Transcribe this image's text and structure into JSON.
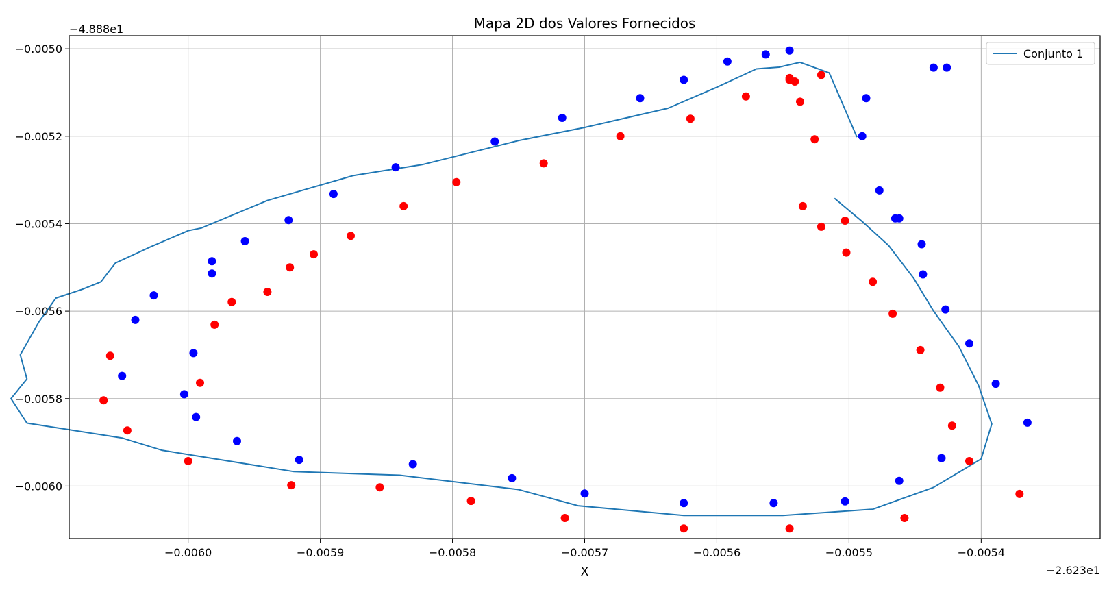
{
  "chart_data": {
    "type": "scatter",
    "title": "Mapa 2D dos Valores Fornecidos",
    "xlabel": "X",
    "ylabel": "",
    "x_offset_label": "−2.623e1",
    "y_offset_label": "−4.888e1",
    "xlim": [
      -0.00609,
      -0.00531
    ],
    "ylim": [
      -0.00612,
      -0.00497
    ],
    "x_ticks": [
      -0.006,
      -0.0059,
      -0.0058,
      -0.0057,
      -0.0056,
      -0.0055,
      -0.0054
    ],
    "x_tick_labels": [
      "−0.0060",
      "−0.0059",
      "−0.0058",
      "−0.0057",
      "−0.0056",
      "−0.0055",
      "−0.0054"
    ],
    "y_ticks": [
      -0.005,
      -0.0052,
      -0.0054,
      -0.0056,
      -0.0058,
      -0.006
    ],
    "y_tick_labels": [
      "−0.0050",
      "−0.0052",
      "−0.0054",
      "−0.0056",
      "−0.0058",
      "−0.0060"
    ],
    "grid": true,
    "legend_position": "top-right",
    "line_color": "#1f77b4",
    "series": [
      {
        "name": "Conjunto 1",
        "kind": "line",
        "color": "#1f77b4",
        "segments": [
          [
            [
              -0.005494,
              -0.005202
            ],
            [
              -0.005515,
              -0.005055
            ],
            [
              -0.005537,
              -0.005031
            ],
            [
              -0.005553,
              -0.005042
            ],
            [
              -0.00557,
              -0.005046
            ],
            [
              -0.0056,
              -0.005088
            ],
            [
              -0.005637,
              -0.005136
            ],
            [
              -0.0057,
              -0.00518
            ],
            [
              -0.00575,
              -0.00521
            ],
            [
              -0.005823,
              -0.005265
            ],
            [
              -0.005875,
              -0.00529
            ],
            [
              -0.00594,
              -0.005347
            ],
            [
              -0.00599,
              -0.00541
            ],
            [
              -0.006,
              -0.005416
            ],
            [
              -0.00603,
              -0.005455
            ],
            [
              -0.006055,
              -0.00549
            ],
            [
              -0.006066,
              -0.005533
            ],
            [
              -0.00608,
              -0.00555
            ],
            [
              -0.0061,
              -0.00557
            ],
            [
              -0.006113,
              -0.005625
            ],
            [
              -0.006127,
              -0.0057
            ],
            [
              -0.006122,
              -0.005755
            ],
            [
              -0.006134,
              -0.0058
            ],
            [
              -0.006122,
              -0.005856
            ],
            [
              -0.00605,
              -0.00589
            ],
            [
              -0.00602,
              -0.005918
            ],
            [
              -0.00592,
              -0.005967
            ],
            [
              -0.00584,
              -0.005975
            ],
            [
              -0.00575,
              -0.006008
            ],
            [
              -0.005705,
              -0.006045
            ],
            [
              -0.005625,
              -0.006067
            ],
            [
              -0.00555,
              -0.006067
            ],
            [
              -0.005482,
              -0.006053
            ],
            [
              -0.005436,
              -0.006003
            ],
            [
              -0.0054,
              -0.005938
            ],
            [
              -0.005392,
              -0.005858
            ],
            [
              -0.005402,
              -0.00577
            ],
            [
              -0.005417,
              -0.00568
            ],
            [
              -0.005436,
              -0.0056
            ],
            [
              -0.005451,
              -0.005525
            ],
            [
              -0.00547,
              -0.00545
            ],
            [
              -0.00549,
              -0.005395
            ],
            [
              -0.005511,
              -0.005342
            ]
          ]
        ]
      },
      {
        "name": "",
        "kind": "scatter",
        "color": "#0000ff",
        "x": [
          -0.005545,
          -0.005563,
          -0.005592,
          -0.005625,
          -0.005658,
          -0.005717,
          -0.005768,
          -0.005843,
          -0.00589,
          -0.005924,
          -0.005957,
          -0.005982,
          -0.005982,
          -0.006026,
          -0.00604,
          -0.00605,
          -0.005996,
          -0.006003,
          -0.005994,
          -0.005963,
          -0.005916,
          -0.00583,
          -0.005755,
          -0.0057,
          -0.005625,
          -0.005557,
          -0.005503,
          -0.005462,
          -0.00543,
          -0.005365,
          -0.005389,
          -0.005409,
          -0.005427,
          -0.005444,
          -0.005445,
          -0.005462,
          -0.005465,
          -0.005477,
          -0.00549,
          -0.005487,
          -0.005436,
          -0.005426
        ],
        "y": [
          -0.005004,
          -0.005013,
          -0.005029,
          -0.005071,
          -0.005113,
          -0.005158,
          -0.005212,
          -0.005271,
          -0.005332,
          -0.005392,
          -0.00544,
          -0.005486,
          -0.005514,
          -0.005564,
          -0.00562,
          -0.005748,
          -0.005696,
          -0.00579,
          -0.005842,
          -0.005897,
          -0.00594,
          -0.00595,
          -0.005982,
          -0.006017,
          -0.006039,
          -0.006039,
          -0.006035,
          -0.005988,
          -0.005936,
          -0.005855,
          -0.005766,
          -0.005674,
          -0.005596,
          -0.005516,
          -0.005447,
          -0.005388,
          -0.005388,
          -0.005324,
          -0.0052,
          -0.005113,
          -0.005043,
          -0.005043
        ]
      },
      {
        "name": "",
        "kind": "scatter",
        "color": "#ff0000",
        "x": [
          -0.005521,
          -0.005541,
          -0.005545,
          -0.005545,
          -0.005537,
          -0.005578,
          -0.00562,
          -0.005673,
          -0.005731,
          -0.005797,
          -0.005837,
          -0.005877,
          -0.005905,
          -0.005923,
          -0.00594,
          -0.005967,
          -0.00598,
          -0.005991,
          -0.006059,
          -0.006064,
          -0.006046,
          -0.006,
          -0.005922,
          -0.005855,
          -0.005786,
          -0.005715,
          -0.005625,
          -0.005545,
          -0.005458,
          -0.005409,
          -0.005371,
          -0.005422,
          -0.005431,
          -0.005446,
          -0.005467,
          -0.005482,
          -0.005502,
          -0.005503,
          -0.005521,
          -0.005535,
          -0.005526
        ],
        "y": [
          -0.00506,
          -0.005075,
          -0.005067,
          -0.005071,
          -0.005121,
          -0.005109,
          -0.00516,
          -0.0052,
          -0.005262,
          -0.005305,
          -0.00536,
          -0.005428,
          -0.00547,
          -0.0055,
          -0.005556,
          -0.005579,
          -0.005631,
          -0.005764,
          -0.005702,
          -0.005804,
          -0.005873,
          -0.005943,
          -0.005998,
          -0.006003,
          -0.006034,
          -0.006073,
          -0.006097,
          -0.006097,
          -0.006073,
          -0.005943,
          -0.006018,
          -0.005862,
          -0.005775,
          -0.005689,
          -0.005606,
          -0.005533,
          -0.005466,
          -0.005393,
          -0.005407,
          -0.00536,
          -0.005207
        ]
      }
    ]
  }
}
